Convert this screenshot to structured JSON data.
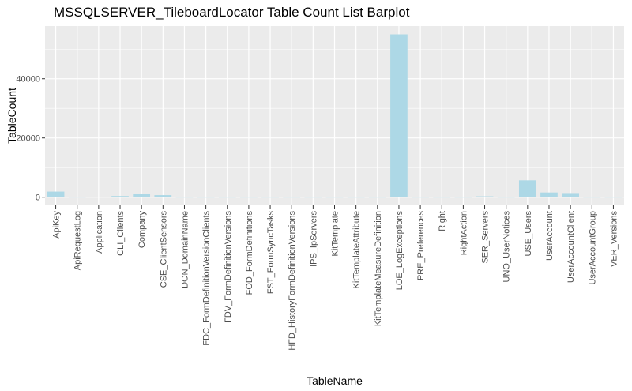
{
  "chart_data": {
    "type": "bar",
    "title": "MSSQLSERVER_TileboardLocator Table Count List Barplot",
    "xlabel": "TableName",
    "ylabel": "TableCount",
    "ylim": [
      -2750,
      57800
    ],
    "yticks": [
      0,
      20000,
      40000
    ],
    "ytick_labels": [
      "0",
      "20000",
      "40000"
    ],
    "grid": true,
    "bar_color": "#add8e6",
    "panel_color": "#ebebeb",
    "categories": [
      "ApiKey",
      "ApiRequestLog",
      "Application",
      "CLI_Clients",
      "Company",
      "CSE_ClientSensors",
      "DON_DomainName",
      "FDC_FormDefinitionVersionClients",
      "FDV_FormDefinitionVersions",
      "FOD_FormDefinitions",
      "FST_FormSyncTasks",
      "HFD_HistoryFormDefinitionVersions",
      "IPS_IpServers",
      "KitTemplate",
      "KitTemplateAttribute",
      "KitTemplateMeasureDefinition",
      "LOE_LogExceptions",
      "PRE_Preferences",
      "Right",
      "RightAction",
      "SER_Servers",
      "UNO_UserNotices",
      "USE_Users",
      "UserAccount",
      "UserAccountClient",
      "UserAccountGroup",
      "VER_Versions"
    ],
    "values": [
      1900,
      20,
      60,
      400,
      1100,
      700,
      10,
      10,
      10,
      10,
      10,
      10,
      10,
      10,
      10,
      10,
      55000,
      10,
      10,
      10,
      300,
      10,
      5700,
      1600,
      1400,
      10,
      10
    ]
  }
}
